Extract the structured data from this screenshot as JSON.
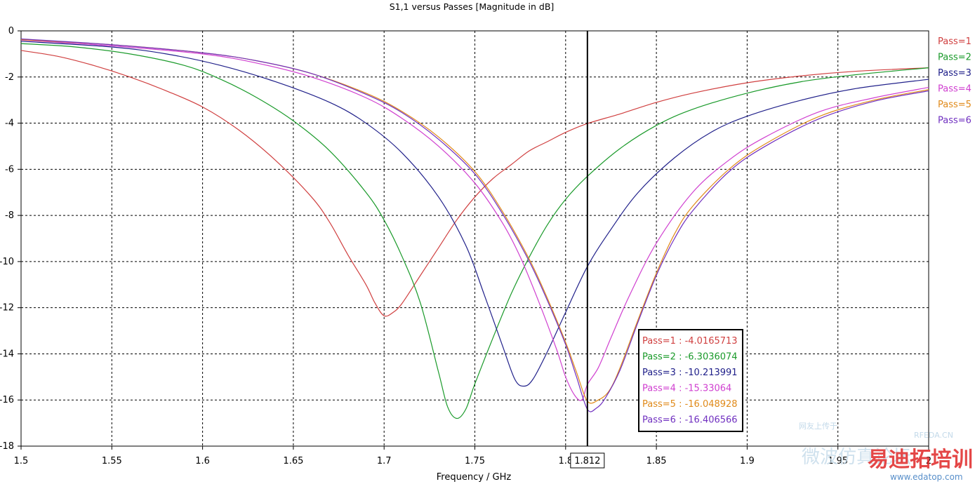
{
  "chart_data": {
    "type": "line",
    "title": "S1,1 versus Passes [Magnitude in dB]",
    "xlabel": "Frequency / GHz",
    "ylabel": "",
    "xlim": [
      1.5,
      2.0
    ],
    "ylim": [
      -18,
      0
    ],
    "x_ticks": [
      "1.5",
      "1.55",
      "1.6",
      "1.65",
      "1.7",
      "1.75",
      "1.8",
      "1.85",
      "1.9",
      "1.95",
      "2"
    ],
    "y_ticks": [
      "0",
      "-2",
      "-4",
      "-6",
      "-8",
      "-10",
      "-12",
      "-14",
      "-16",
      "-18"
    ],
    "grid": true,
    "legend_position": "right",
    "marker": {
      "x": 1.812,
      "label": "1.812"
    },
    "series": [
      {
        "name": "Pass=1",
        "color": "#d04040",
        "readout": "-4.0165713",
        "points": [
          [
            1.5,
            -0.85
          ],
          [
            1.52,
            -1.1
          ],
          [
            1.54,
            -1.5
          ],
          [
            1.56,
            -2.0
          ],
          [
            1.58,
            -2.6
          ],
          [
            1.6,
            -3.3
          ],
          [
            1.62,
            -4.3
          ],
          [
            1.64,
            -5.6
          ],
          [
            1.66,
            -7.2
          ],
          [
            1.67,
            -8.3
          ],
          [
            1.68,
            -9.7
          ],
          [
            1.69,
            -11.0
          ],
          [
            1.695,
            -11.8
          ],
          [
            1.7,
            -12.35
          ],
          [
            1.705,
            -12.2
          ],
          [
            1.71,
            -11.8
          ],
          [
            1.72,
            -10.6
          ],
          [
            1.73,
            -9.4
          ],
          [
            1.74,
            -8.2
          ],
          [
            1.75,
            -7.2
          ],
          [
            1.76,
            -6.4
          ],
          [
            1.77,
            -5.8
          ],
          [
            1.78,
            -5.2
          ],
          [
            1.79,
            -4.8
          ],
          [
            1.8,
            -4.4
          ],
          [
            1.812,
            -4.0165713
          ],
          [
            1.83,
            -3.6
          ],
          [
            1.85,
            -3.1
          ],
          [
            1.87,
            -2.7
          ],
          [
            1.9,
            -2.25
          ],
          [
            1.93,
            -1.95
          ],
          [
            1.96,
            -1.75
          ],
          [
            2.0,
            -1.6
          ]
        ]
      },
      {
        "name": "Pass=2",
        "color": "#1a9a2a",
        "readout": "-6.3036074",
        "points": [
          [
            1.5,
            -0.55
          ],
          [
            1.53,
            -0.7
          ],
          [
            1.56,
            -1.0
          ],
          [
            1.59,
            -1.5
          ],
          [
            1.61,
            -2.1
          ],
          [
            1.63,
            -2.9
          ],
          [
            1.65,
            -3.9
          ],
          [
            1.67,
            -5.2
          ],
          [
            1.69,
            -7.0
          ],
          [
            1.7,
            -8.2
          ],
          [
            1.71,
            -9.8
          ],
          [
            1.72,
            -11.8
          ],
          [
            1.73,
            -14.8
          ],
          [
            1.735,
            -16.3
          ],
          [
            1.74,
            -16.8
          ],
          [
            1.745,
            -16.4
          ],
          [
            1.75,
            -15.3
          ],
          [
            1.76,
            -13.3
          ],
          [
            1.77,
            -11.4
          ],
          [
            1.78,
            -9.8
          ],
          [
            1.79,
            -8.4
          ],
          [
            1.8,
            -7.3
          ],
          [
            1.812,
            -6.3036074
          ],
          [
            1.83,
            -5.1
          ],
          [
            1.85,
            -4.1
          ],
          [
            1.87,
            -3.4
          ],
          [
            1.9,
            -2.7
          ],
          [
            1.93,
            -2.2
          ],
          [
            1.96,
            -1.9
          ],
          [
            2.0,
            -1.6
          ]
        ]
      },
      {
        "name": "Pass=3",
        "color": "#20208a",
        "readout": "-10.213991",
        "points": [
          [
            1.5,
            -0.45
          ],
          [
            1.55,
            -0.7
          ],
          [
            1.58,
            -1.0
          ],
          [
            1.61,
            -1.5
          ],
          [
            1.64,
            -2.2
          ],
          [
            1.67,
            -3.1
          ],
          [
            1.69,
            -4.0
          ],
          [
            1.71,
            -5.3
          ],
          [
            1.73,
            -7.2
          ],
          [
            1.745,
            -9.3
          ],
          [
            1.755,
            -11.4
          ],
          [
            1.765,
            -13.6
          ],
          [
            1.772,
            -15.1
          ],
          [
            1.777,
            -15.4
          ],
          [
            1.782,
            -15.1
          ],
          [
            1.79,
            -13.9
          ],
          [
            1.8,
            -12.2
          ],
          [
            1.812,
            -10.213991
          ],
          [
            1.825,
            -8.6
          ],
          [
            1.84,
            -7.0
          ],
          [
            1.86,
            -5.5
          ],
          [
            1.88,
            -4.4
          ],
          [
            1.9,
            -3.7
          ],
          [
            1.93,
            -3.0
          ],
          [
            1.96,
            -2.5
          ],
          [
            2.0,
            -2.1
          ]
        ]
      },
      {
        "name": "Pass=4",
        "color": "#d040d0",
        "readout": "-15.33064",
        "points": [
          [
            1.5,
            -0.4
          ],
          [
            1.55,
            -0.65
          ],
          [
            1.6,
            -1.0
          ],
          [
            1.63,
            -1.4
          ],
          [
            1.66,
            -2.0
          ],
          [
            1.69,
            -2.9
          ],
          [
            1.71,
            -3.8
          ],
          [
            1.73,
            -5.0
          ],
          [
            1.75,
            -6.6
          ],
          [
            1.765,
            -8.3
          ],
          [
            1.775,
            -9.8
          ],
          [
            1.785,
            -11.7
          ],
          [
            1.795,
            -13.8
          ],
          [
            1.8,
            -15.0
          ],
          [
            1.805,
            -15.8
          ],
          [
            1.809,
            -16.0
          ],
          [
            1.812,
            -15.33064
          ],
          [
            1.818,
            -14.6
          ],
          [
            1.825,
            -13.3
          ],
          [
            1.835,
            -11.5
          ],
          [
            1.85,
            -9.2
          ],
          [
            1.87,
            -7.0
          ],
          [
            1.89,
            -5.6
          ],
          [
            1.91,
            -4.6
          ],
          [
            1.94,
            -3.5
          ],
          [
            1.97,
            -2.9
          ],
          [
            2.0,
            -2.45
          ]
        ]
      },
      {
        "name": "Pass=5",
        "color": "#e08a1a",
        "readout": "-16.048928",
        "points": [
          [
            1.5,
            -0.38
          ],
          [
            1.55,
            -0.6
          ],
          [
            1.6,
            -0.95
          ],
          [
            1.63,
            -1.3
          ],
          [
            1.66,
            -1.85
          ],
          [
            1.69,
            -2.7
          ],
          [
            1.71,
            -3.5
          ],
          [
            1.73,
            -4.6
          ],
          [
            1.75,
            -6.1
          ],
          [
            1.765,
            -7.8
          ],
          [
            1.78,
            -9.9
          ],
          [
            1.79,
            -11.6
          ],
          [
            1.8,
            -13.5
          ],
          [
            1.806,
            -14.8
          ],
          [
            1.812,
            -16.048928
          ],
          [
            1.818,
            -16.0
          ],
          [
            1.824,
            -15.6
          ],
          [
            1.83,
            -14.6
          ],
          [
            1.84,
            -12.5
          ],
          [
            1.85,
            -10.5
          ],
          [
            1.86,
            -8.8
          ],
          [
            1.87,
            -7.6
          ],
          [
            1.89,
            -6.0
          ],
          [
            1.91,
            -4.9
          ],
          [
            1.94,
            -3.7
          ],
          [
            1.97,
            -3.0
          ],
          [
            2.0,
            -2.55
          ]
        ]
      },
      {
        "name": "Pass=6",
        "color": "#7030c0",
        "readout": "-16.406566",
        "points": [
          [
            1.5,
            -0.35
          ],
          [
            1.55,
            -0.6
          ],
          [
            1.6,
            -0.95
          ],
          [
            1.63,
            -1.3
          ],
          [
            1.66,
            -1.85
          ],
          [
            1.69,
            -2.75
          ],
          [
            1.71,
            -3.55
          ],
          [
            1.73,
            -4.7
          ],
          [
            1.75,
            -6.2
          ],
          [
            1.765,
            -7.9
          ],
          [
            1.78,
            -10.0
          ],
          [
            1.79,
            -11.7
          ],
          [
            1.8,
            -13.6
          ],
          [
            1.806,
            -15.0
          ],
          [
            1.812,
            -16.406566
          ],
          [
            1.817,
            -16.35
          ],
          [
            1.822,
            -15.9
          ],
          [
            1.83,
            -14.7
          ],
          [
            1.84,
            -12.6
          ],
          [
            1.85,
            -10.6
          ],
          [
            1.86,
            -9.0
          ],
          [
            1.87,
            -7.8
          ],
          [
            1.89,
            -6.1
          ],
          [
            1.91,
            -5.0
          ],
          [
            1.94,
            -3.8
          ],
          [
            1.97,
            -3.05
          ],
          [
            2.0,
            -2.6
          ]
        ]
      }
    ]
  },
  "watermarks": {
    "small_cn": "网友上传于",
    "rfeda": "RFEDA.CN",
    "brand_cn": "易迪拓培训",
    "sub_cn": "微波仿真论坛",
    "site": "www.edatop.com"
  }
}
